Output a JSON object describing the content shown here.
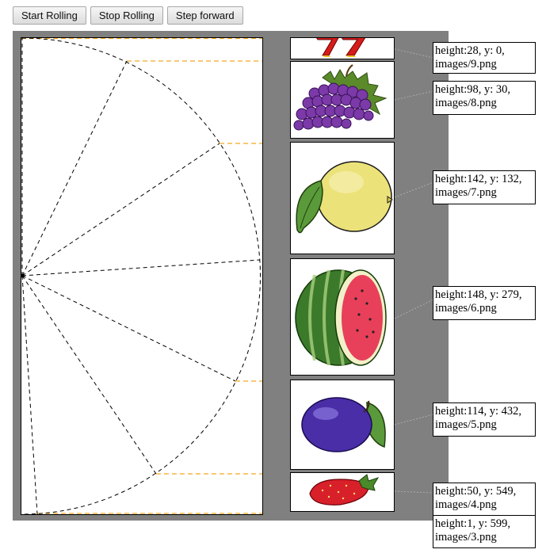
{
  "toolbar": {
    "start_label": "Start Rolling",
    "stop_label": "Stop Rolling",
    "step_label": "Step forward"
  },
  "colors": {
    "stage_bg": "#808080",
    "guide_line": "#f5a623",
    "wheel_line": "#000000"
  },
  "symbols": [
    {
      "name": "seven-icon",
      "label": "height:28, y: 0,\nimages/9.png"
    },
    {
      "name": "grapes-icon",
      "label": "height:98, y: 30,\nimages/8.png"
    },
    {
      "name": "lemon-icon",
      "label": "height:142, y: 132,\nimages/7.png"
    },
    {
      "name": "watermelon-icon",
      "label": "height:148, y: 279,\nimages/6.png"
    },
    {
      "name": "plum-icon",
      "label": "height:114, y: 432,\nimages/5.png"
    },
    {
      "name": "strawberry-icon",
      "label": "height:50, y: 549,\nimages/4.png"
    },
    {
      "name": "image-3",
      "label": "height:1, y: 599,\nimages/3.png"
    }
  ]
}
